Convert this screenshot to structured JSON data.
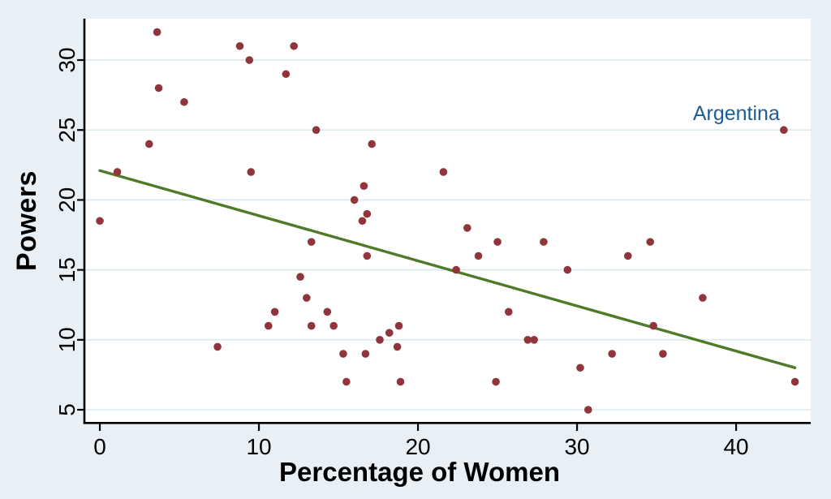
{
  "figure": {
    "background_color": "#e8eff5",
    "plot_background_color": "#ffffff",
    "gridline_color": "#dce9f1",
    "axis_color": "#000000"
  },
  "chart_data": {
    "type": "scatter",
    "title": "",
    "xlabel": "Percentage of Women",
    "ylabel": "Powers",
    "xticks": [
      0,
      10,
      20,
      30,
      40
    ],
    "yticks": [
      5,
      10,
      15,
      20,
      25,
      30
    ],
    "xlim": [
      -0.92,
      44.69
    ],
    "ylim": [
      4.13,
      32.96
    ],
    "grid": "horizontal",
    "legend": "none",
    "marker_color": "#90353b",
    "points": [
      [
        3.6,
        32
      ],
      [
        8.8,
        31
      ],
      [
        12.2,
        31
      ],
      [
        9.4,
        30
      ],
      [
        11.7,
        29
      ],
      [
        3.7,
        28
      ],
      [
        5.3,
        27
      ],
      [
        13.6,
        25
      ],
      [
        43,
        25
      ],
      [
        3.1,
        24
      ],
      [
        17.1,
        24
      ],
      [
        1.1,
        22
      ],
      [
        9.5,
        22
      ],
      [
        21.6,
        22
      ],
      [
        16.6,
        21
      ],
      [
        16,
        20
      ],
      [
        16.8,
        19
      ],
      [
        16.5,
        18.5
      ],
      [
        0,
        18.5
      ],
      [
        23.1,
        18
      ],
      [
        13.3,
        17
      ],
      [
        25,
        17
      ],
      [
        27.9,
        17
      ],
      [
        34.6,
        17
      ],
      [
        16.8,
        16
      ],
      [
        23.8,
        16
      ],
      [
        33.2,
        16
      ],
      [
        22.4,
        15
      ],
      [
        29.4,
        15
      ],
      [
        12.6,
        14.5
      ],
      [
        13,
        13
      ],
      [
        37.9,
        13
      ],
      [
        11,
        12
      ],
      [
        14.3,
        12
      ],
      [
        25.7,
        12
      ],
      [
        10.6,
        11
      ],
      [
        13.3,
        11
      ],
      [
        14.7,
        11
      ],
      [
        18.8,
        11
      ],
      [
        34.8,
        11
      ],
      [
        18.2,
        10.5
      ],
      [
        17.6,
        10
      ],
      [
        26.9,
        10
      ],
      [
        27.3,
        10
      ],
      [
        18.7,
        9.5
      ],
      [
        7.4,
        9.5
      ],
      [
        15.3,
        9
      ],
      [
        16.7,
        9
      ],
      [
        32.2,
        9
      ],
      [
        35.4,
        9
      ],
      [
        30.2,
        8
      ],
      [
        15.5,
        7
      ],
      [
        18.9,
        7
      ],
      [
        24.9,
        7
      ],
      [
        43.7,
        7
      ],
      [
        30.7,
        5
      ]
    ],
    "trend_line": {
      "color": "#4f7b29",
      "x1": 0,
      "y1": 22.1,
      "x2": 43.7,
      "y2": 8.0
    },
    "annotations": [
      {
        "label": "Argentina",
        "x": 43,
        "y": 25,
        "color": "#1f5c94"
      }
    ]
  }
}
